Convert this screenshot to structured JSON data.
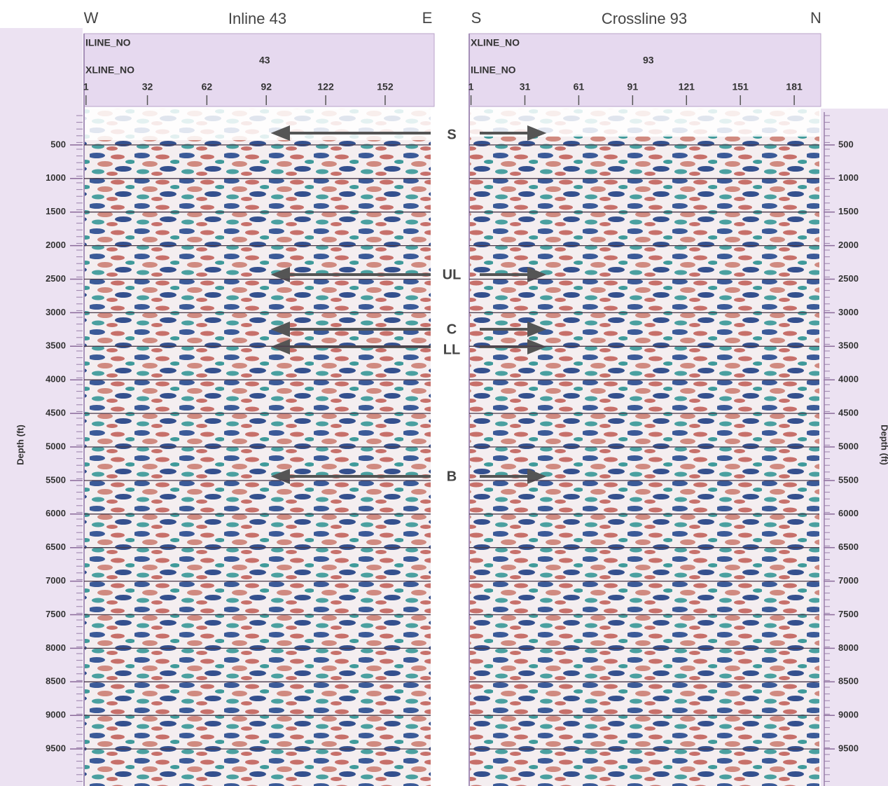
{
  "panels": [
    {
      "title": "Inline 43",
      "left_label": "W",
      "right_label": "E",
      "header": {
        "line1": "ILINE_NO",
        "line1_value": "43",
        "line2": "XLINE_NO"
      },
      "trace_ticks": [
        1,
        32,
        62,
        92,
        122,
        152
      ],
      "trace_range": [
        0,
        175
      ]
    },
    {
      "title": "Crossline 93",
      "left_label": "S",
      "right_label": "N",
      "header": {
        "line1": "XLINE_NO",
        "line1_value": "93",
        "line2": "ILINE_NO"
      },
      "trace_ticks": [
        1,
        31,
        61,
        91,
        121,
        151,
        181
      ],
      "trace_range": [
        0,
        195
      ]
    }
  ],
  "depth_axis": {
    "label": "Depth (ft)",
    "ticks": [
      500,
      1000,
      1500,
      2000,
      2500,
      3000,
      3500,
      4000,
      4500,
      5000,
      5500,
      6000,
      6500,
      7000,
      7500,
      8000,
      8500,
      9000,
      9500
    ],
    "range": [
      0,
      10000
    ]
  },
  "horizons": [
    "S",
    "UL",
    "C",
    "LL",
    "B"
  ]
}
